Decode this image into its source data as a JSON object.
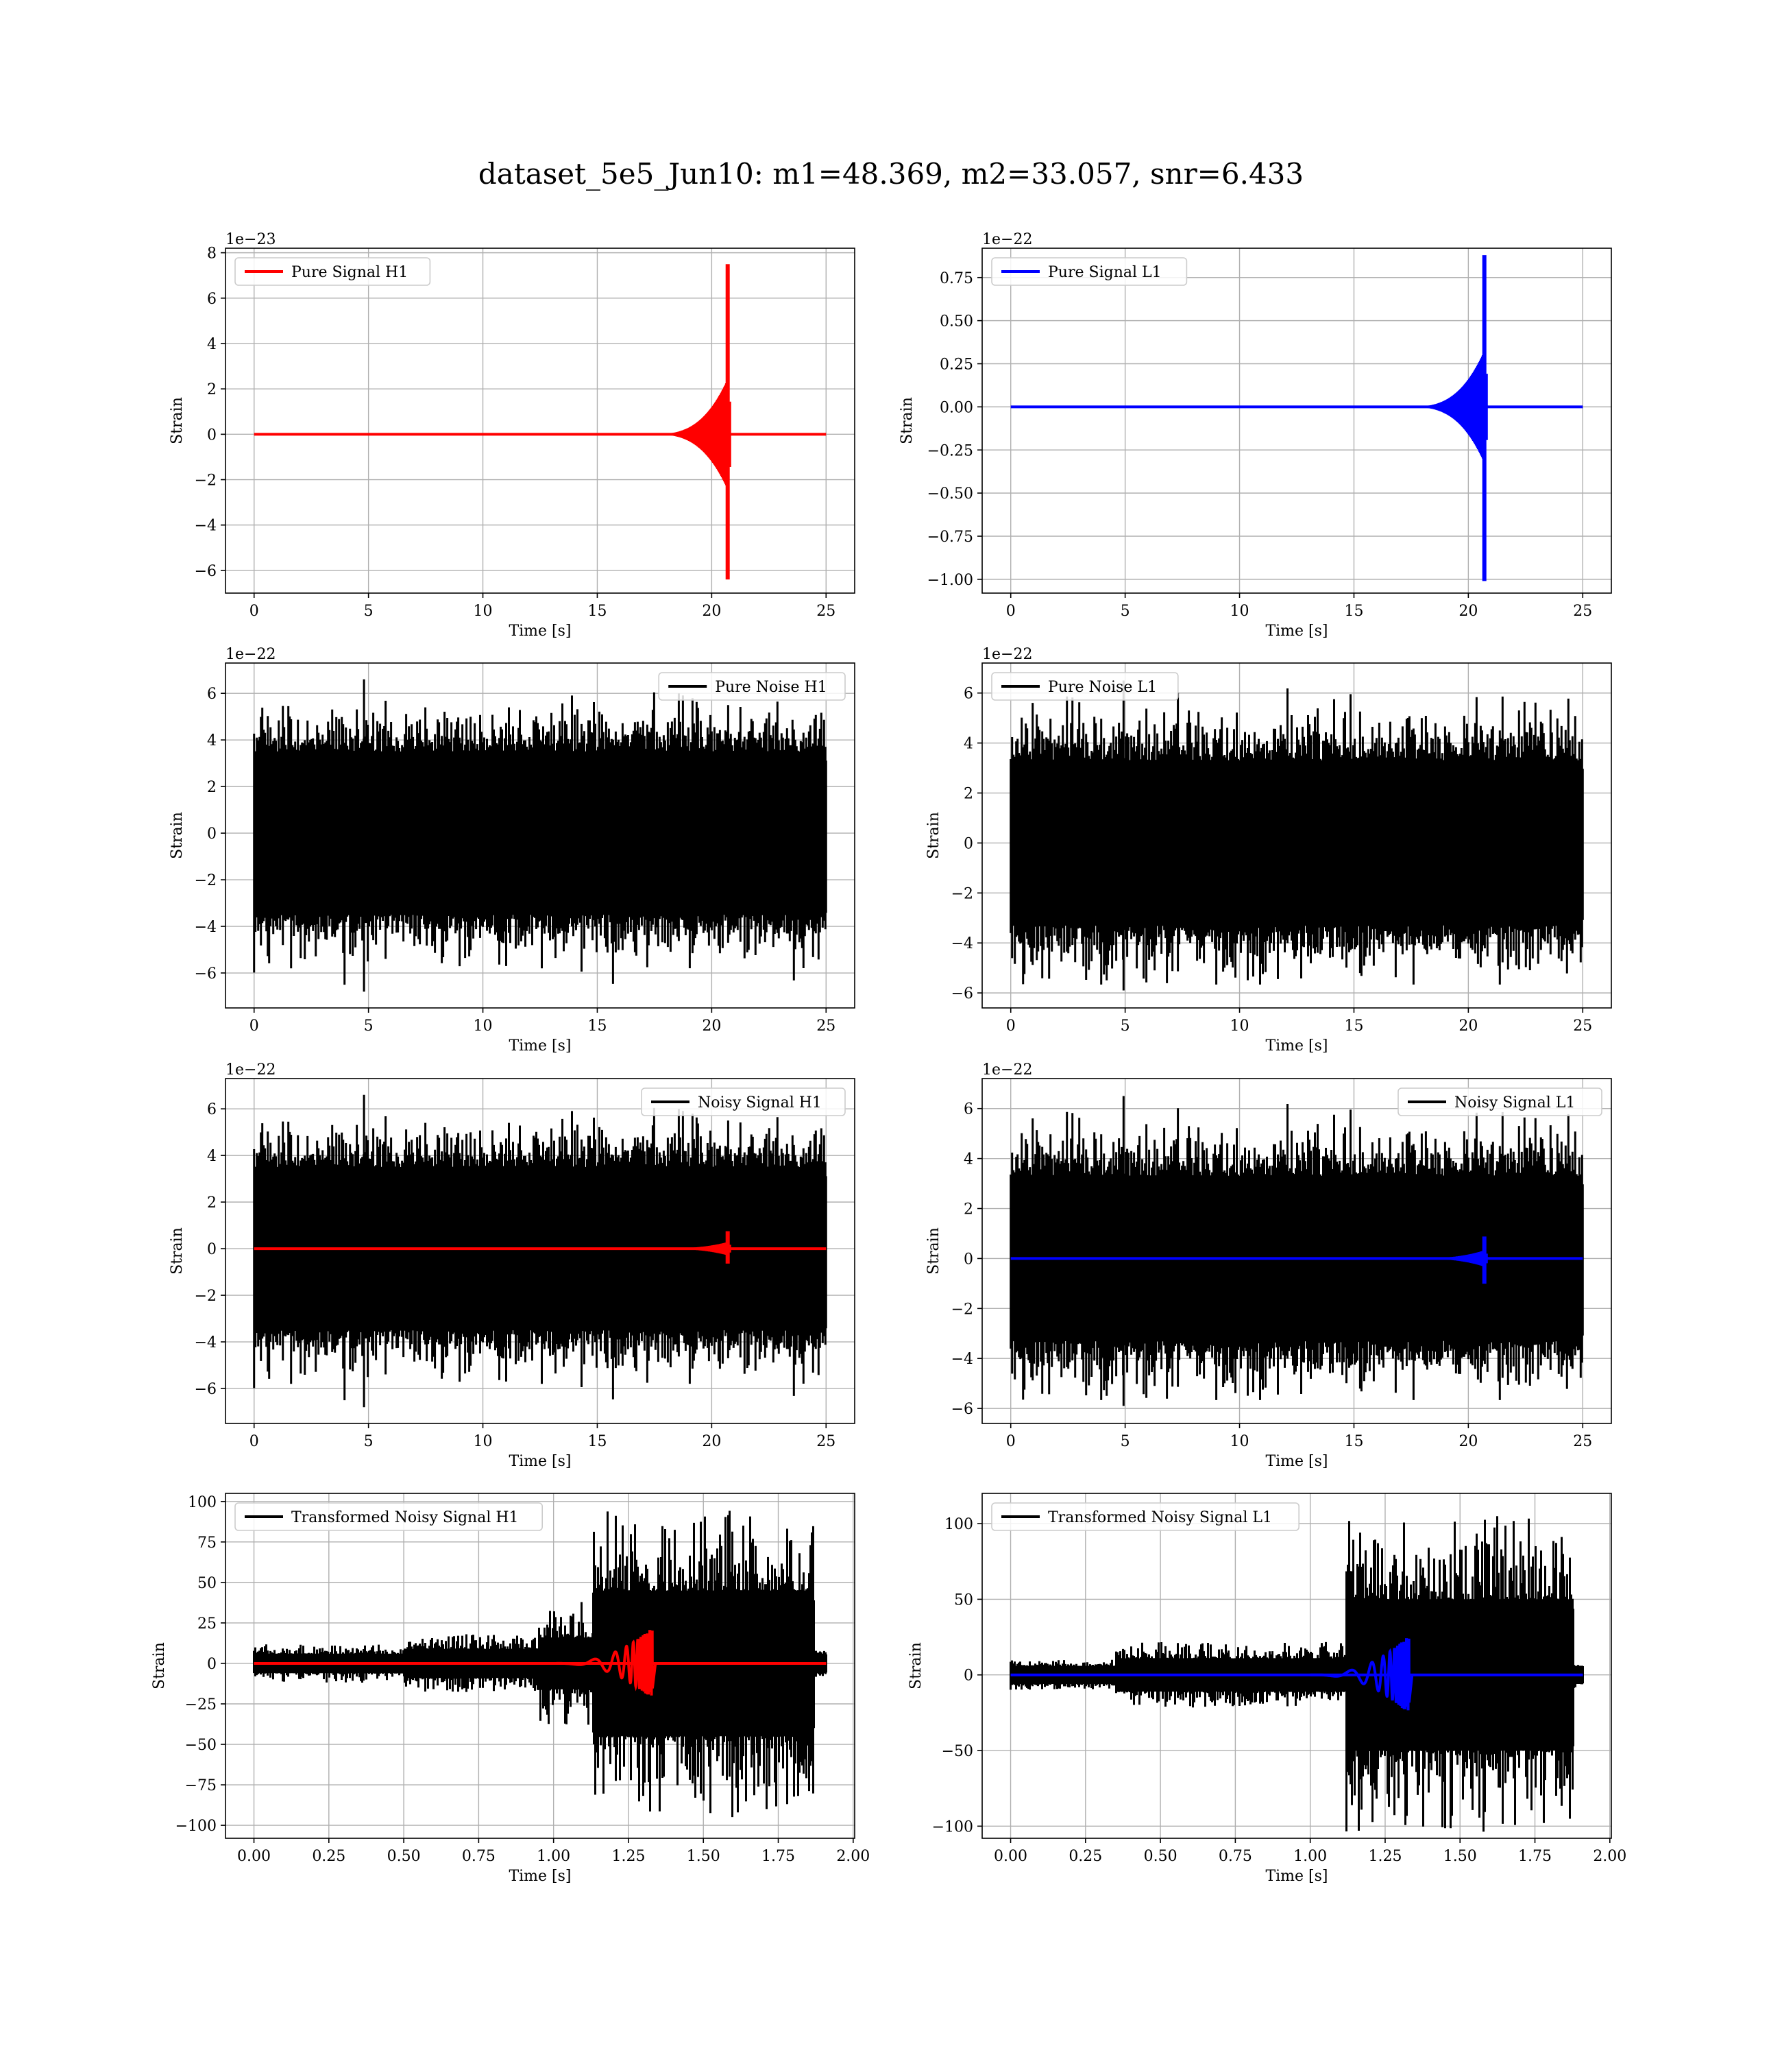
{
  "figure_title": "dataset_5e5_Jun10: m1=48.369, m2=33.057, snr=6.433",
  "colors": {
    "h1_signal": "#ff0000",
    "l1_signal": "#0000ff",
    "noise": "#000000"
  },
  "chart_data": [
    {
      "id": "pure-signal-h1",
      "type": "line",
      "xlabel": "Time [s]",
      "ylabel": "Strain",
      "offset_text": "1e−23",
      "xlim": [
        -1.25,
        26.25
      ],
      "ylim": [
        -7.0,
        8.2
      ],
      "xticks": [
        0,
        5,
        10,
        15,
        20,
        25
      ],
      "xtick_labels": [
        "0",
        "5",
        "10",
        "15",
        "20",
        "25"
      ],
      "yticks": [
        -6,
        -4,
        -2,
        0,
        2,
        4,
        6,
        8
      ],
      "ytick_labels": [
        "−6",
        "−4",
        "−2",
        "0",
        "2",
        "4",
        "6",
        "8"
      ],
      "legend": {
        "position": "top-left",
        "entries": [
          {
            "label": "Pure Signal H1",
            "color": "#ff0000"
          }
        ]
      },
      "series": [
        {
          "name": "Pure Signal H1",
          "color": "#ff0000",
          "kind": "chirp",
          "x_range": [
            0,
            25
          ],
          "merger": 20.7,
          "amp_max": 2.4,
          "peak_pos": 7.5,
          "peak_neg": -6.4,
          "baseline": 0
        }
      ]
    },
    {
      "id": "pure-signal-l1",
      "type": "line",
      "xlabel": "Time [s]",
      "ylabel": "Strain",
      "offset_text": "1e−22",
      "xlim": [
        -1.25,
        26.25
      ],
      "ylim": [
        -1.08,
        0.92
      ],
      "xticks": [
        0,
        5,
        10,
        15,
        20,
        25
      ],
      "xtick_labels": [
        "0",
        "5",
        "10",
        "15",
        "20",
        "25"
      ],
      "yticks": [
        -1.0,
        -0.75,
        -0.5,
        -0.25,
        0.0,
        0.25,
        0.5,
        0.75
      ],
      "ytick_labels": [
        "−1.00",
        "−0.75",
        "−0.50",
        "−0.25",
        "0.00",
        "0.25",
        "0.50",
        "0.75"
      ],
      "legend": {
        "position": "top-left",
        "entries": [
          {
            "label": "Pure Signal L1",
            "color": "#0000ff"
          }
        ]
      },
      "series": [
        {
          "name": "Pure Signal L1",
          "color": "#0000ff",
          "kind": "chirp",
          "x_range": [
            0,
            25
          ],
          "merger": 20.7,
          "amp_max": 0.32,
          "peak_pos": 0.88,
          "peak_neg": -1.01,
          "baseline": 0
        }
      ]
    },
    {
      "id": "pure-noise-h1",
      "type": "line",
      "xlabel": "Time [s]",
      "ylabel": "Strain",
      "offset_text": "1e−22",
      "xlim": [
        -1.25,
        26.25
      ],
      "ylim": [
        -7.5,
        7.3
      ],
      "xticks": [
        0,
        5,
        10,
        15,
        20,
        25
      ],
      "xtick_labels": [
        "0",
        "5",
        "10",
        "15",
        "20",
        "25"
      ],
      "yticks": [
        -6,
        -4,
        -2,
        0,
        2,
        4,
        6
      ],
      "ytick_labels": [
        "−6",
        "−4",
        "−2",
        "0",
        "2",
        "4",
        "6"
      ],
      "legend": {
        "position": "top-right",
        "entries": [
          {
            "label": "Pure Noise H1",
            "color": "#000000"
          }
        ]
      },
      "series": [
        {
          "name": "Pure Noise H1",
          "color": "#000000",
          "kind": "noise",
          "x_range": [
            0,
            25
          ],
          "band": 3.5,
          "spike_max": 6.6,
          "spike_min": -6.8,
          "seed": 11
        }
      ]
    },
    {
      "id": "pure-noise-l1",
      "type": "line",
      "xlabel": "Time [s]",
      "ylabel": "Strain",
      "offset_text": "1e−22",
      "xlim": [
        -1.25,
        26.25
      ],
      "ylim": [
        -6.6,
        7.2
      ],
      "xticks": [
        0,
        5,
        10,
        15,
        20,
        25
      ],
      "xtick_labels": [
        "0",
        "5",
        "10",
        "15",
        "20",
        "25"
      ],
      "yticks": [
        -6,
        -4,
        -2,
        0,
        2,
        4,
        6
      ],
      "ytick_labels": [
        "−6",
        "−4",
        "−2",
        "0",
        "2",
        "4",
        "6"
      ],
      "legend": {
        "position": "top-left",
        "entries": [
          {
            "label": "Pure Noise L1",
            "color": "#000000"
          }
        ]
      },
      "series": [
        {
          "name": "Pure Noise L1",
          "color": "#000000",
          "kind": "noise",
          "x_range": [
            0,
            25
          ],
          "band": 3.3,
          "spike_max": 6.5,
          "spike_min": -5.9,
          "seed": 23
        }
      ]
    },
    {
      "id": "noisy-signal-h1",
      "type": "line",
      "xlabel": "Time [s]",
      "ylabel": "Strain",
      "offset_text": "1e−22",
      "xlim": [
        -1.25,
        26.25
      ],
      "ylim": [
        -7.5,
        7.3
      ],
      "xticks": [
        0,
        5,
        10,
        15,
        20,
        25
      ],
      "xtick_labels": [
        "0",
        "5",
        "10",
        "15",
        "20",
        "25"
      ],
      "yticks": [
        -6,
        -4,
        -2,
        0,
        2,
        4,
        6
      ],
      "ytick_labels": [
        "−6",
        "−4",
        "−2",
        "0",
        "2",
        "4",
        "6"
      ],
      "legend": {
        "position": "top-right",
        "entries": [
          {
            "label": "Noisy Signal H1",
            "color": "#000000"
          }
        ]
      },
      "series": [
        {
          "name": "Noisy Signal H1",
          "color": "#000000",
          "kind": "noise",
          "x_range": [
            0,
            25
          ],
          "band": 3.5,
          "spike_max": 6.6,
          "spike_min": -6.8,
          "seed": 11
        },
        {
          "color": "#ff0000",
          "kind": "chirp",
          "x_range": [
            0,
            25
          ],
          "merger": 20.7,
          "amp_max": 0.28,
          "peak_pos": 0.75,
          "peak_neg": -0.64,
          "baseline": 0
        }
      ]
    },
    {
      "id": "noisy-signal-l1",
      "type": "line",
      "xlabel": "Time [s]",
      "ylabel": "Strain",
      "offset_text": "1e−22",
      "xlim": [
        -1.25,
        26.25
      ],
      "ylim": [
        -6.6,
        7.2
      ],
      "xticks": [
        0,
        5,
        10,
        15,
        20,
        25
      ],
      "xtick_labels": [
        "0",
        "5",
        "10",
        "15",
        "20",
        "25"
      ],
      "yticks": [
        -6,
        -4,
        -2,
        0,
        2,
        4,
        6
      ],
      "ytick_labels": [
        "−6",
        "−4",
        "−2",
        "0",
        "2",
        "4",
        "6"
      ],
      "legend": {
        "position": "top-right",
        "entries": [
          {
            "label": "Noisy Signal L1",
            "color": "#000000"
          }
        ]
      },
      "series": [
        {
          "name": "Noisy Signal L1",
          "color": "#000000",
          "kind": "noise",
          "x_range": [
            0,
            25
          ],
          "band": 3.3,
          "spike_max": 6.5,
          "spike_min": -5.9,
          "seed": 23
        },
        {
          "color": "#0000ff",
          "kind": "chirp",
          "x_range": [
            0,
            25
          ],
          "merger": 20.7,
          "amp_max": 0.32,
          "peak_pos": 0.88,
          "peak_neg": -1.01,
          "baseline": 0
        }
      ]
    },
    {
      "id": "transformed-noisy-signal-h1",
      "type": "line",
      "xlabel": "Time [s]",
      "ylabel": "Strain",
      "offset_text": "",
      "xlim": [
        -0.095,
        2.005
      ],
      "ylim": [
        -108,
        105
      ],
      "xticks": [
        0.0,
        0.25,
        0.5,
        0.75,
        1.0,
        1.25,
        1.5,
        1.75,
        2.0
      ],
      "xtick_labels": [
        "0.00",
        "0.25",
        "0.50",
        "0.75",
        "1.00",
        "1.25",
        "1.50",
        "1.75",
        "2.00"
      ],
      "yticks": [
        -100,
        -75,
        -50,
        -25,
        0,
        25,
        50,
        75,
        100
      ],
      "ytick_labels": [
        "−100",
        "−75",
        "−50",
        "−25",
        "0",
        "25",
        "50",
        "75",
        "100"
      ],
      "legend": {
        "position": "top-left",
        "entries": [
          {
            "label": "Transformed Noisy Signal H1",
            "color": "#000000"
          }
        ]
      },
      "series": [
        {
          "name": "Transformed Noisy Signal H1",
          "color": "#000000",
          "kind": "tnoise",
          "x_range": [
            0,
            1.91
          ],
          "stages": [
            [
              0,
              0.5,
              6,
              12
            ],
            [
              0.5,
              0.95,
              9,
              18
            ],
            [
              0.95,
              1.13,
              16,
              40
            ],
            [
              1.13,
              1.87,
              45,
              95
            ],
            [
              1.87,
              1.91,
              6,
              9
            ]
          ],
          "seed": 5
        },
        {
          "color": "#ff0000",
          "kind": "tchirp",
          "x_range": [
            0,
            1.91
          ],
          "merger": 1.33,
          "start": 1.0,
          "peak": 22
        }
      ]
    },
    {
      "id": "transformed-noisy-signal-l1",
      "type": "line",
      "xlabel": "Time [s]",
      "ylabel": "Strain",
      "offset_text": "",
      "xlim": [
        -0.095,
        2.005
      ],
      "ylim": [
        -108,
        120
      ],
      "xticks": [
        0.0,
        0.25,
        0.5,
        0.75,
        1.0,
        1.25,
        1.5,
        1.75,
        2.0
      ],
      "xtick_labels": [
        "0.00",
        "0.25",
        "0.50",
        "0.75",
        "1.00",
        "1.25",
        "1.50",
        "1.75",
        "2.00"
      ],
      "yticks": [
        -100,
        -50,
        0,
        50,
        100
      ],
      "ytick_labels": [
        "−100",
        "−50",
        "0",
        "50",
        "100"
      ],
      "legend": {
        "position": "top-left",
        "entries": [
          {
            "label": "Transformed Noisy Signal L1",
            "color": "#000000"
          }
        ]
      },
      "series": [
        {
          "name": "Transformed Noisy Signal L1",
          "color": "#000000",
          "kind": "tnoise",
          "x_range": [
            0,
            1.91
          ],
          "stages": [
            [
              0,
              0.35,
              6,
              10
            ],
            [
              0.35,
              1.12,
              11,
              22
            ],
            [
              1.12,
              1.88,
              50,
              105
            ],
            [
              1.88,
              1.91,
              6,
              9
            ]
          ],
          "seed": 17
        },
        {
          "color": "#0000ff",
          "kind": "tchirp",
          "x_range": [
            0,
            1.91
          ],
          "merger": 1.33,
          "start": 1.0,
          "peak": 26
        }
      ]
    }
  ]
}
